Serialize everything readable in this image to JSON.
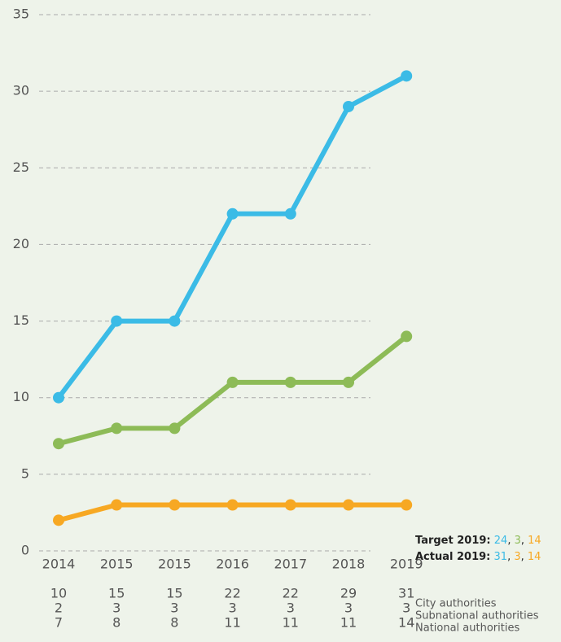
{
  "chart_data": {
    "type": "line",
    "categories": [
      "2014",
      "2015",
      "2015",
      "2016",
      "2017",
      "2018",
      "2019"
    ],
    "series": [
      {
        "name": "City authorities",
        "color": "#3bbbe6",
        "values": [
          10,
          15,
          15,
          22,
          22,
          29,
          31
        ]
      },
      {
        "name": "Subnational authorities",
        "color": "#f7a823",
        "values": [
          2,
          3,
          3,
          3,
          3,
          3,
          3
        ]
      },
      {
        "name": "National authorities",
        "color": "#8dbb57",
        "values": [
          7,
          8,
          8,
          11,
          11,
          11,
          14
        ]
      }
    ],
    "ylim": [
      0,
      35
    ],
    "yticks": [
      0,
      5,
      10,
      15,
      20,
      25,
      30,
      35
    ],
    "grid": true,
    "annotations": [
      {
        "label": "Target 2019:",
        "values": [
          24,
          3,
          14
        ],
        "colors": [
          "#3bbbe6",
          "#8dbb57",
          "#f7a823"
        ]
      },
      {
        "label": "Actual 2019:",
        "values": [
          31,
          3,
          14
        ],
        "colors": [
          "#3bbbe6",
          "#f7a823",
          "#f7a823"
        ]
      }
    ]
  }
}
